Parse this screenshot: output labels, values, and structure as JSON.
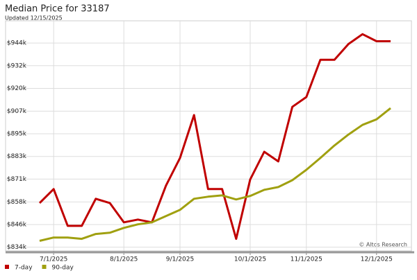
{
  "chart_data": {
    "type": "line",
    "title": "Median Price for 33187",
    "subtitle": "Updated 12/15/2025",
    "watermark": "© Altos Research",
    "categories": [
      null,
      "7/1/2025",
      null,
      null,
      null,
      null,
      "8/1/2025",
      null,
      null,
      null,
      "9/1/2025",
      null,
      null,
      null,
      null,
      "10/1/2025",
      null,
      null,
      null,
      "11/1/2025",
      null,
      null,
      null,
      null,
      "12/1/2025",
      null
    ],
    "series": [
      {
        "name": "7-day",
        "color": "#c00000",
        "values": [
          857.8,
          865.3,
          845.5,
          845.5,
          860.1,
          857.8,
          847.4,
          848.9,
          847.4,
          867.2,
          882.1,
          905.2,
          865.3,
          865.3,
          838.5,
          870.5,
          885.4,
          880.2,
          909.6,
          914.9,
          935.0,
          935.0,
          943.5,
          948.8,
          945.0,
          945.0
        ]
      },
      {
        "name": "90-day",
        "color": "#a0a010",
        "values": [
          837.4,
          839.2,
          839.2,
          838.5,
          841.1,
          841.8,
          844.4,
          846.3,
          847.4,
          850.8,
          854.1,
          860.1,
          861.2,
          861.9,
          859.7,
          861.6,
          864.9,
          866.4,
          870.1,
          875.7,
          882.1,
          888.8,
          894.7,
          899.9,
          902.9,
          908.9
        ]
      }
    ],
    "ylim": [
      832,
      956
    ],
    "yticks": [
      {
        "value": 834,
        "label": "$834k"
      },
      {
        "value": 846.2,
        "label": "$846k"
      },
      {
        "value": 858.4,
        "label": "$858k"
      },
      {
        "value": 870.7,
        "label": "$871k"
      },
      {
        "value": 882.9,
        "label": "$883k"
      },
      {
        "value": 895.1,
        "label": "$895k"
      },
      {
        "value": 907.3,
        "label": "$907k"
      },
      {
        "value": 919.6,
        "label": "$920k"
      },
      {
        "value": 931.8,
        "label": "$932k"
      },
      {
        "value": 944,
        "label": "$944k"
      }
    ],
    "grid": true,
    "legend": "bottom-left"
  }
}
